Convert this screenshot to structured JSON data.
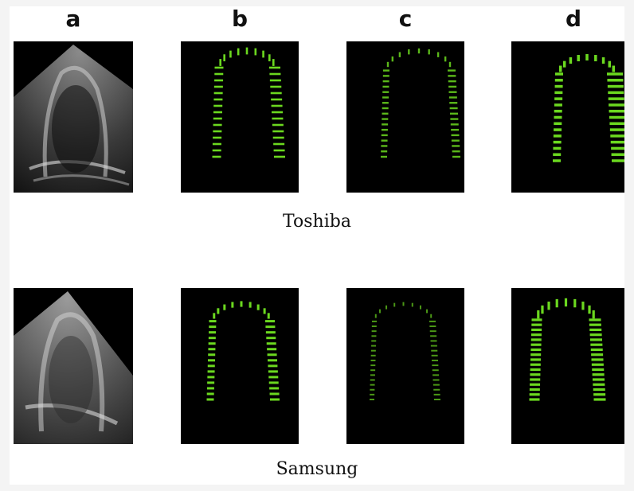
{
  "columns": [
    "a",
    "b",
    "c",
    "d"
  ],
  "rows": [
    {
      "caption": "Toshiba"
    },
    {
      "caption": "Samsung"
    }
  ],
  "colors": {
    "strain_green": "#6bd81f",
    "background": "#000000"
  }
}
